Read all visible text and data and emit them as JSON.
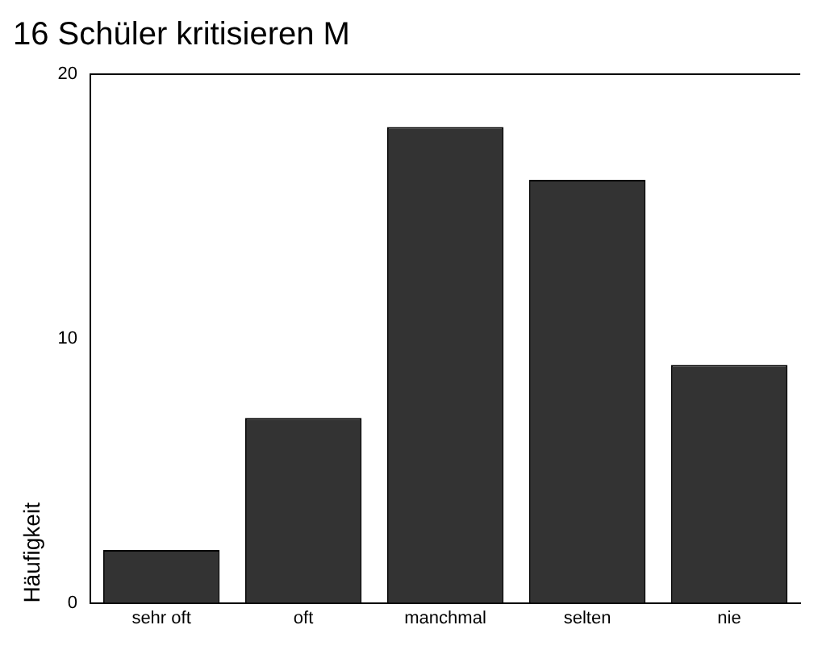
{
  "chart_data": {
    "type": "bar",
    "title": "16 Schüler kritisieren M",
    "ylabel": "Häufigkeit",
    "categories": [
      "sehr oft",
      "oft",
      "manchmal",
      "selten",
      "nie"
    ],
    "values": [
      2,
      7,
      18,
      16,
      9
    ],
    "color": "#333333",
    "ylim": [
      0,
      20
    ],
    "yticks": [
      0,
      10,
      20
    ],
    "grid": false,
    "legend": false
  }
}
